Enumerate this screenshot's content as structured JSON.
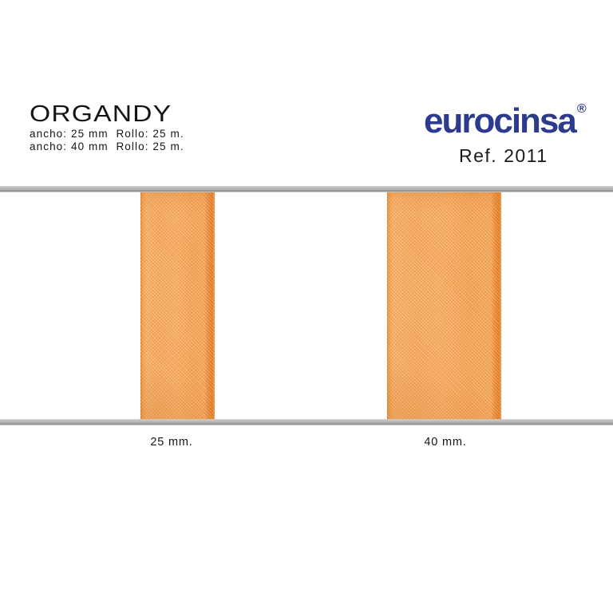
{
  "page": {
    "background_color": "#ffffff"
  },
  "header": {
    "title": "ORGANDY",
    "specs": [
      "ancho: 25 mm  Rollo: 25 m.",
      "ancho: 40 mm  Rollo: 25 m."
    ]
  },
  "brand": {
    "logo_text": "eurocinsa",
    "registered_mark": "®",
    "reference": "Ref. 2011",
    "logo_color": "#2d3b8e"
  },
  "samples": {
    "rail_color": "#adadad",
    "ribbon_base_color": "#f4a65c",
    "ribbon_edge_color": "#e2791f",
    "items": [
      {
        "label": "25 mm."
      },
      {
        "label": "40 mm."
      }
    ]
  }
}
